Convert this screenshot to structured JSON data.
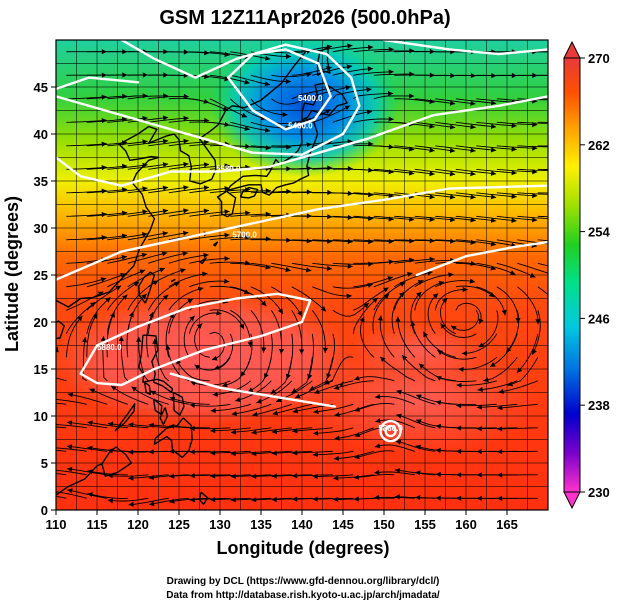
{
  "chart_data": {
    "type": "heatmap",
    "title": "GSM 12Z11Apr2026 (500.0hPa)",
    "xlabel": "Longitude (degrees)",
    "ylabel": "Latitude  (degrees)",
    "xlim": [
      110,
      170
    ],
    "ylim": [
      0,
      50
    ],
    "xticks": [
      110,
      115,
      120,
      125,
      130,
      135,
      140,
      145,
      150,
      155,
      160,
      165
    ],
    "yticks": [
      0,
      5,
      10,
      15,
      20,
      25,
      30,
      35,
      40,
      45
    ],
    "grid": true,
    "quantity": "temperature (K), shaded, with streamlines and geopotential height contours",
    "colorbar": {
      "min": 230,
      "max": 270,
      "ticks": [
        230,
        238,
        246,
        254,
        262,
        270
      ],
      "colors": [
        "#ff33cc",
        "#7a00cc",
        "#0000cc",
        "#0070e0",
        "#00c8e0",
        "#00e08c",
        "#20d020",
        "#a0e000",
        "#fff000",
        "#ffa000",
        "#ff5000",
        "#e83a3a"
      ]
    },
    "contours": [
      {
        "label": "5880.0",
        "lon": 116.5,
        "lat": 17.0
      },
      {
        "label": "5880.0",
        "lon": 150.8,
        "lat": 8.4
      },
      {
        "label": "5700.0",
        "lon": 133.0,
        "lat": 29.0
      },
      {
        "label": "5580.0",
        "lon": 131.0,
        "lat": 36.0
      },
      {
        "label": "5460.0",
        "lon": 139.8,
        "lat": 40.6
      },
      {
        "label": "5400.0",
        "lon": 141.0,
        "lat": 43.5
      }
    ],
    "field_anchors": [
      {
        "lon": 135,
        "lat": 44,
        "value": 239
      },
      {
        "lon": 139,
        "lat": 46,
        "value": 240
      },
      {
        "lon": 142,
        "lat": 40,
        "value": 246
      },
      {
        "lon": 128,
        "lat": 42,
        "value": 248
      },
      {
        "lon": 112,
        "lat": 49,
        "value": 246
      },
      {
        "lon": 160,
        "lat": 49,
        "value": 252
      }
    ]
  },
  "credits": {
    "line1": "Drawing by DCL (https://www.gfd-dennou.org/library/dcl/)",
    "line2": "Data from http://database.rish.kyoto-u.ac.jp/arch/jmadata/"
  }
}
